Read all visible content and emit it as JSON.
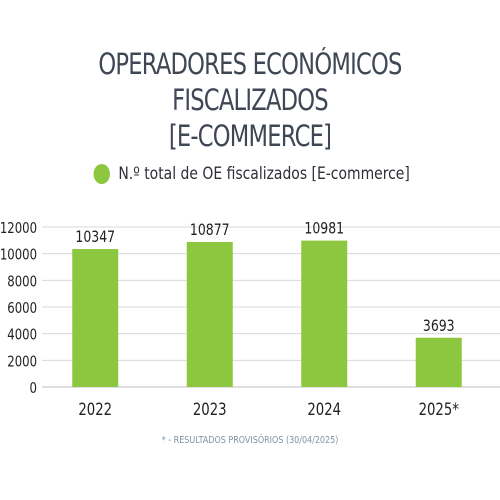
{
  "title_line1": "OPERADORES ECONÓMICOS FISCALIZADOS",
  "title_line2": "[E-COMMERCE]",
  "legend_label": "N.º total de OE fiscalizados [E-commerce]",
  "footnote": "* - RESULTADOS PROVISÓRIOS (30/04/2025)",
  "colors": {
    "bar": "#8dc63f",
    "title": "#3f4654",
    "grid": "#d9d9d9",
    "footnote": "#7c93a6"
  },
  "chart_data": {
    "type": "bar",
    "title": "OPERADORES ECONÓMICOS FISCALIZADOS [E-COMMERCE]",
    "categories": [
      "2022",
      "2023",
      "2024",
      "2025*"
    ],
    "series": [
      {
        "name": "N.º total de OE fiscalizados [E-commerce]",
        "values": [
          10347,
          10877,
          10981,
          3693
        ]
      }
    ],
    "yticks": [
      0,
      2000,
      4000,
      6000,
      8000,
      10000,
      12000
    ],
    "ylim": [
      0,
      12000
    ],
    "grid": true,
    "legend": "top-center",
    "data_labels": true
  }
}
